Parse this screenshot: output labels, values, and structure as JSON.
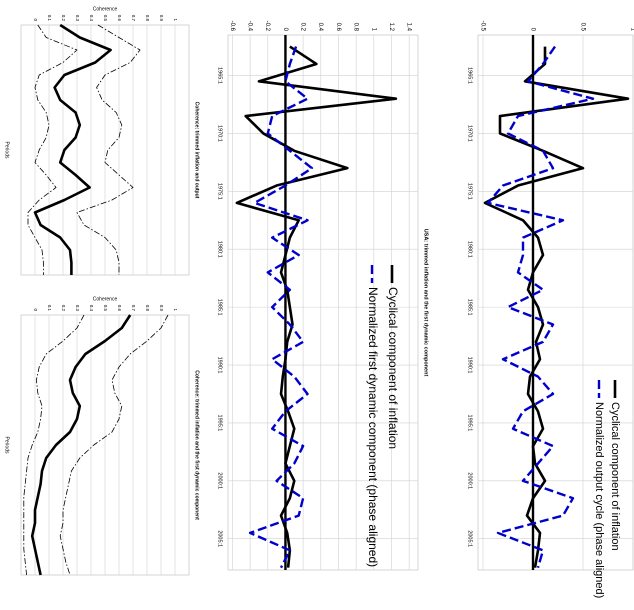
{
  "chart_data": [
    {
      "type": "line",
      "x": [
        1962.5,
        1964,
        1965.5,
        1967,
        1968.5,
        1970,
        1971.5,
        1973,
        1974.5,
        1976,
        1977.5,
        1979,
        1980.5,
        1982,
        1983.5,
        1985,
        1986.5,
        1988,
        1989.5,
        1991,
        1992.5,
        1994,
        1995.5,
        1997,
        1998.5,
        2000,
        2001.5,
        2003,
        2004.5,
        2006,
        2007.5
      ],
      "series": [
        {
          "name": "Cyclical component of inflation",
          "color": "#000000",
          "style": "solid",
          "values": [
            0.12,
            0.12,
            -0.08,
            0.95,
            -0.33,
            -0.33,
            0.1,
            0.5,
            -0.15,
            -0.48,
            -0.1,
            0.05,
            0.1,
            0.0,
            -0.05,
            0.05,
            0.1,
            0.03,
            0.07,
            -0.03,
            -0.05,
            0.05,
            0.1,
            0.0,
            0.02,
            0.12,
            0.0,
            -0.06,
            0.07,
            0.05,
            0.02
          ]
        },
        {
          "name": "Normalized output cycle (phase aligned)",
          "color": "#0000cc",
          "style": "dashed",
          "values": [
            0.22,
            0.1,
            -0.05,
            0.6,
            -0.15,
            -0.25,
            0.1,
            0.2,
            -0.3,
            -0.45,
            0.3,
            -0.1,
            -0.1,
            -0.15,
            0.1,
            -0.25,
            0.2,
            0.1,
            -0.3,
            0.05,
            0.2,
            -0.1,
            -0.2,
            0.2,
            0.05,
            -0.1,
            0.4,
            0.3,
            -0.35,
            0.1,
            0.05
          ]
        }
      ],
      "xlim": [
        1961.5,
        2007.7
      ],
      "ylim": [
        -0.55,
        1.0
      ],
      "xticks": [
        {
          "value": 1965,
          "label": "1965:1"
        },
        {
          "value": 1970,
          "label": "1970:1"
        },
        {
          "value": 1975,
          "label": "1975:1"
        },
        {
          "value": 1980,
          "label": "1980:1"
        },
        {
          "value": 1985,
          "label": "1985:1"
        },
        {
          "value": 1990,
          "label": "1990:1"
        },
        {
          "value": 1995,
          "label": "1995:1"
        },
        {
          "value": 2000,
          "label": "2000:1"
        },
        {
          "value": 2005,
          "label": "2005:1"
        }
      ],
      "yticks": [
        -0.5,
        0,
        0.5,
        1
      ],
      "grid": true,
      "zero_line": true
    },
    {
      "type": "line",
      "title": "USA: trimmed inflation and the first dynamic component",
      "x": [
        1962.5,
        1964,
        1965.5,
        1967,
        1968.5,
        1970,
        1971.5,
        1973,
        1974.5,
        1976,
        1977.5,
        1979,
        1980.5,
        1982,
        1983.5,
        1985,
        1986.5,
        1988,
        1989.5,
        1991,
        1992.5,
        1994,
        1995.5,
        1997,
        1998.5,
        2000,
        2001.5,
        2003,
        2004.5,
        2006,
        2007.5
      ],
      "series": [
        {
          "name": "Cyclical component of inflation",
          "color": "#000000",
          "style": "solid",
          "values": [
            0.05,
            0.35,
            -0.3,
            1.25,
            -0.45,
            -0.25,
            0.1,
            0.7,
            -0.1,
            -0.55,
            0.15,
            0.05,
            0,
            -0.05,
            0.02,
            0.05,
            0.08,
            0.02,
            0,
            -0.03,
            -0.05,
            0.03,
            0.1,
            0.05,
            0,
            0.1,
            0.05,
            -0.05,
            0.02,
            0.05,
            0.03
          ]
        },
        {
          "name": "Normalized first dynamic component (phase aligned)",
          "color": "#0000cc",
          "style": "dashed",
          "values": [
            0.12,
            0.05,
            0,
            0.25,
            -0.15,
            -0.2,
            0.05,
            0.3,
            0,
            -0.35,
            0.25,
            -0.15,
            0.15,
            -0.2,
            0.05,
            -0.15,
            0.05,
            0.2,
            -0.15,
            0.1,
            0.25,
            0,
            -0.15,
            0.2,
            0.1,
            -0.1,
            0.2,
            0.15,
            -0.4,
            0.05,
            -0.05
          ]
        }
      ],
      "xlim": [
        1961.5,
        2007.7
      ],
      "ylim": [
        -0.65,
        1.5
      ],
      "xticks": [
        {
          "value": 1965,
          "label": "1965:1"
        },
        {
          "value": 1970,
          "label": "1970:1"
        },
        {
          "value": 1975,
          "label": "1975:1"
        },
        {
          "value": 1980,
          "label": "1980:1"
        },
        {
          "value": 1985,
          "label": "1985:1"
        },
        {
          "value": 1990,
          "label": "1990:1"
        },
        {
          "value": 1995,
          "label": "1995:1"
        },
        {
          "value": 2000,
          "label": "2000:1"
        },
        {
          "value": 2005,
          "label": "2005:1"
        }
      ],
      "yticks": [
        -0.6,
        -0.4,
        -0.2,
        0,
        0.2,
        0.4,
        0.6,
        0.8,
        1,
        1.2,
        1.4
      ],
      "grid": true,
      "zero_line": true
    },
    {
      "type": "line",
      "title": "Coherence: trimmed inflation and output",
      "xlabel": "Periods",
      "ylabel": "Coherence",
      "x": [
        0,
        1,
        2,
        3,
        4,
        5,
        6,
        7,
        8,
        9,
        10,
        11,
        12,
        13,
        14,
        15,
        16,
        17,
        18,
        19,
        20
      ],
      "series": [
        {
          "color": "#000000",
          "style": "solid",
          "values": [
            0.18,
            0.32,
            0.54,
            0.43,
            0.21,
            0.14,
            0.18,
            0.29,
            0.32,
            0.29,
            0.21,
            0.18,
            0.29,
            0.39,
            0.21,
            0.0,
            0.04,
            0.18,
            0.25,
            0.26,
            0.26
          ]
        },
        {
          "color": "#000000",
          "style": "dashdot",
          "values": [
            0.45,
            0.6,
            0.75,
            0.68,
            0.5,
            0.44,
            0.48,
            0.58,
            0.62,
            0.6,
            0.52,
            0.5,
            0.6,
            0.7,
            0.55,
            0.3,
            0.35,
            0.5,
            0.58,
            0.6,
            0.6
          ]
        },
        {
          "color": "#000000",
          "style": "dashdot",
          "values": [
            0.02,
            0.08,
            0.3,
            0.2,
            0.03,
            0.0,
            0.02,
            0.08,
            0.1,
            0.08,
            0.03,
            0.0,
            0.08,
            0.15,
            0.03,
            -0.05,
            -0.05,
            0.0,
            0.05,
            0.06,
            0.06
          ]
        }
      ],
      "xlim": [
        0,
        20
      ],
      "ylim": [
        -0.1,
        1.1
      ],
      "yticks": [
        0,
        0.1,
        0.2,
        0.3,
        0.4,
        0.5,
        0.6,
        0.7,
        0.8,
        0.9,
        1
      ],
      "grid": true
    },
    {
      "type": "line",
      "title": "Coherence: trimmed inflation and the first dynamic component",
      "xlabel": "Periods",
      "ylabel": "Coherence",
      "x": [
        0,
        1,
        2,
        3,
        4,
        5,
        6,
        7,
        8,
        9,
        10,
        11,
        12,
        13,
        14,
        15,
        16,
        17,
        18,
        19,
        20
      ],
      "series": [
        {
          "color": "#000000",
          "style": "solid",
          "values": [
            0.68,
            0.62,
            0.5,
            0.36,
            0.29,
            0.25,
            0.27,
            0.32,
            0.3,
            0.25,
            0.15,
            0.08,
            0.05,
            0.04,
            0.02,
            0,
            0,
            -0.02,
            0,
            0.02,
            0.04
          ]
        },
        {
          "color": "#000000",
          "style": "dashdot",
          "values": [
            0.95,
            0.9,
            0.8,
            0.68,
            0.6,
            0.55,
            0.57,
            0.62,
            0.6,
            0.55,
            0.42,
            0.32,
            0.26,
            0.24,
            0.22,
            0.2,
            0.2,
            0.18,
            0.2,
            0.22,
            0.25
          ]
        },
        {
          "color": "#000000",
          "style": "dashdot",
          "values": [
            0.35,
            0.3,
            0.2,
            0.08,
            0.03,
            0.01,
            0.02,
            0.05,
            0.04,
            0.02,
            -0.02,
            -0.05,
            -0.06,
            -0.07,
            -0.08,
            -0.08,
            -0.08,
            -0.08,
            -0.08,
            -0.07,
            -0.06
          ]
        }
      ],
      "xlim": [
        0,
        20
      ],
      "ylim": [
        -0.1,
        1.1
      ],
      "yticks": [
        0,
        0.1,
        0.2,
        0.3,
        0.4,
        0.5,
        0.6,
        0.7,
        0.8,
        0.9,
        1
      ],
      "grid": true
    }
  ]
}
